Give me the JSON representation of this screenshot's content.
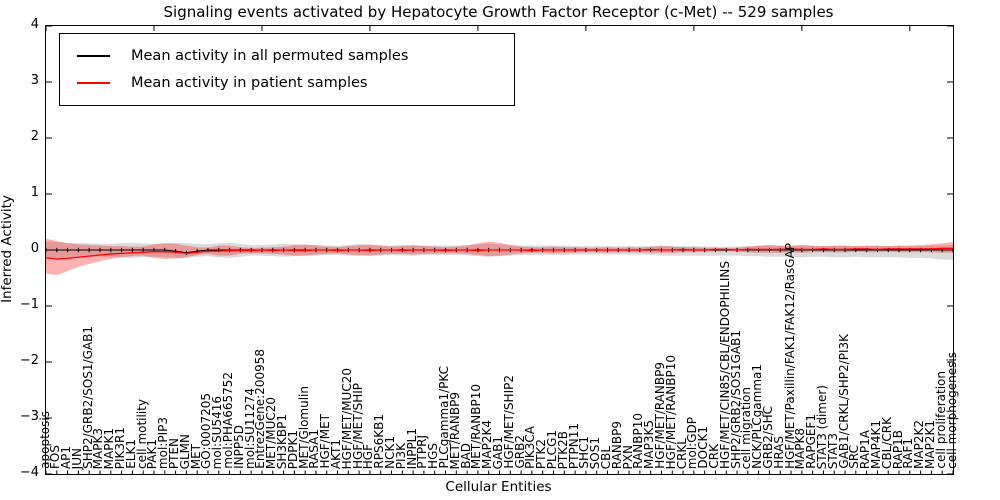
{
  "chart_data": {
    "type": "line",
    "title": "Signaling events activated by Hepatocyte Growth Factor Receptor (c-Met) -- 529 samples",
    "xlabel": "Cellular Entities",
    "ylabel": "Inferred Activity",
    "ylim": [
      -4,
      4
    ],
    "yticks": [
      4,
      3,
      2,
      1,
      0,
      -1,
      -2,
      -3,
      -4
    ],
    "grid": false,
    "legend_position": "upper left",
    "x_tick_rotation": 90,
    "categories": [
      "apoptosis",
      "FOS",
      "AP1",
      "JUN",
      "SHP2/GRB2/SOS1/GAB1",
      "MAPK3",
      "MAPK1",
      "PIK3R1",
      "ELK1",
      "cell motility",
      "PAK1",
      "mol:PIP3",
      "PTEN",
      "GLMN",
      "MET",
      "GO:0007205",
      "mol:SU5416",
      "mol:PHA665752",
      "INPP5D",
      "mol:SU11274",
      "EntrezGene:200958",
      "MET/MUC20",
      "SH3KBP1",
      "PDPK1",
      "MET/Glomulin",
      "RASA1",
      "HGF/MET",
      "AKT1",
      "HGF/MET/MUC20",
      "HGF/MET/SHIP",
      "HGF",
      "RPS6KB1",
      "NCK1",
      "PI3K",
      "INPPL1",
      "PTPRJ",
      "HGS",
      "PLCgamma1/PKC",
      "MET/RANBP9",
      "BAD",
      "MET/RANBP10",
      "MAP2K4",
      "GAB1",
      "HGF/MET/SHIP2",
      "GRB2",
      "PIK3CA",
      "PTK2",
      "PLCG1",
      "PTK2B",
      "PTPN11",
      "SHC1",
      "SOS1",
      "CBL",
      "RANBP9",
      "PXN",
      "RANBP10",
      "MAP3K5",
      "HGF/MET/RANBP9",
      "HGF/MET/RANBP10",
      "CRKL",
      "mol:GDP",
      "DOCK1",
      "CRK",
      "HGF/MET/CIN85/CBL/ENDOPHILINS",
      "SHP2/GRB2/SOS1GAB1",
      "cell migration",
      "NCK/PLCgamma1",
      "GRB2/SHC",
      "HRAS",
      "HGF/MET/Paxillin/FAK1/FAK12/RasGAP",
      "MAPK8",
      "RAPGEF1",
      "STAT3 (dimer)",
      "STAT3",
      "GAB1/CRKL/SHP2/PI3K",
      "SRC",
      "RAP1A",
      "MAP4K1",
      "CBL/CRK",
      "RAP1B",
      "RAF1",
      "MAP2K2",
      "MAP2K1",
      "cell proliferation",
      "cell morphogenesis"
    ],
    "series": [
      {
        "name": "Mean activity in all permuted samples",
        "color": "#000000",
        "band_fill": "rgba(0,0,0,0.14)",
        "values": [
          0,
          0,
          0,
          0,
          0,
          0,
          0,
          0,
          0,
          0,
          0,
          0,
          -0.02,
          -0.05,
          -0.02,
          0,
          0,
          0,
          0,
          0,
          0,
          0,
          0,
          0,
          0,
          0,
          0,
          0,
          0,
          0,
          0,
          0,
          0,
          0,
          0,
          0,
          0,
          0,
          0,
          0,
          0,
          0,
          0,
          0,
          0,
          0,
          0,
          0,
          0,
          0,
          0,
          0,
          0,
          0,
          0,
          0,
          0,
          0,
          0,
          0,
          0,
          0,
          0,
          0,
          0,
          0,
          0,
          0,
          0,
          0,
          0,
          0,
          0,
          0,
          0,
          0,
          0,
          0,
          0,
          0,
          0,
          0,
          0,
          0,
          0
        ],
        "band_upper": [
          0.15,
          0.14,
          0.13,
          0.12,
          0.12,
          0.11,
          0.11,
          0.12,
          0.13,
          0.12,
          0.11,
          0.12,
          0.13,
          0.12,
          0.11,
          0.1,
          0.12,
          0.13,
          0.11,
          0.09,
          0.09,
          0.1,
          0.11,
          0.1,
          0.09,
          0.09,
          0.08,
          0.08,
          0.09,
          0.1,
          0.09,
          0.08,
          0.08,
          0.09,
          0.09,
          0.08,
          0.08,
          0.08,
          0.08,
          0.09,
          0.1,
          0.11,
          0.1,
          0.09,
          0.08,
          0.08,
          0.08,
          0.08,
          0.08,
          0.07,
          0.07,
          0.07,
          0.07,
          0.07,
          0.07,
          0.07,
          0.07,
          0.08,
          0.07,
          0.07,
          0.07,
          0.06,
          0.06,
          0.06,
          0.06,
          0.07,
          0.07,
          0.08,
          0.07,
          0.07,
          0.08,
          0.07,
          0.07,
          0.07,
          0.07,
          0.07,
          0.07,
          0.07,
          0.07,
          0.07,
          0.07,
          0.07,
          0.08,
          0.08,
          0.09
        ],
        "band_lower": [
          -0.15,
          -0.14,
          -0.13,
          -0.13,
          -0.12,
          -0.12,
          -0.12,
          -0.13,
          -0.14,
          -0.13,
          -0.12,
          -0.13,
          -0.14,
          -0.14,
          -0.12,
          -0.11,
          -0.13,
          -0.14,
          -0.12,
          -0.1,
          -0.1,
          -0.11,
          -0.12,
          -0.11,
          -0.1,
          -0.1,
          -0.09,
          -0.09,
          -0.1,
          -0.11,
          -0.1,
          -0.09,
          -0.09,
          -0.1,
          -0.1,
          -0.09,
          -0.09,
          -0.09,
          -0.09,
          -0.1,
          -0.11,
          -0.12,
          -0.11,
          -0.1,
          -0.09,
          -0.09,
          -0.09,
          -0.09,
          -0.09,
          -0.08,
          -0.08,
          -0.08,
          -0.08,
          -0.08,
          -0.08,
          -0.08,
          -0.09,
          -0.1,
          -0.1,
          -0.1,
          -0.1,
          -0.1,
          -0.1,
          -0.1,
          -0.1,
          -0.11,
          -0.11,
          -0.12,
          -0.12,
          -0.12,
          -0.13,
          -0.12,
          -0.12,
          -0.13,
          -0.13,
          -0.12,
          -0.13,
          -0.13,
          -0.13,
          -0.13,
          -0.14,
          -0.14,
          -0.15,
          -0.17,
          -0.18
        ]
      },
      {
        "name": "Mean activity in patient samples",
        "color": "#ff0000",
        "band_fill": "rgba(255,0,0,0.30)",
        "values": [
          -0.14,
          -0.16,
          -0.15,
          -0.13,
          -0.11,
          -0.09,
          -0.07,
          -0.06,
          -0.05,
          -0.04,
          -0.03,
          -0.03,
          -0.04,
          -0.06,
          -0.04,
          -0.02,
          -0.02,
          -0.01,
          -0.01,
          -0.01,
          0,
          -0.01,
          0,
          -0.01,
          -0.01,
          0,
          0,
          -0.01,
          0,
          0,
          -0.01,
          0,
          0,
          -0.01,
          0,
          0,
          0,
          -0.01,
          0,
          0,
          -0.01,
          0,
          0,
          0,
          0,
          -0.01,
          0,
          0,
          0,
          0,
          0,
          0,
          0,
          0,
          0,
          0,
          0.01,
          0,
          0,
          0.01,
          0,
          0,
          0.01,
          0.01,
          0,
          0.01,
          0.01,
          0.01,
          0.01,
          0.02,
          0.01,
          0.01,
          0.02,
          0.01,
          0.01,
          0.02,
          0.02,
          0.01,
          0.02,
          0.02,
          0.02,
          0.02,
          0.02,
          0.03,
          0.03
        ],
        "band_upper": [
          0.2,
          0.16,
          0.12,
          0.1,
          0.09,
          0.08,
          0.07,
          0.07,
          0.06,
          0.06,
          0.1,
          0.12,
          0.11,
          0.08,
          0.05,
          0.04,
          0.08,
          0.08,
          0.05,
          0.04,
          0.04,
          0.05,
          0.06,
          0.09,
          0.1,
          0.08,
          0.06,
          0.05,
          0.07,
          0.09,
          0.1,
          0.08,
          0.06,
          0.07,
          0.08,
          0.07,
          0.06,
          0.05,
          0.06,
          0.08,
          0.12,
          0.15,
          0.13,
          0.09,
          0.06,
          0.05,
          0.05,
          0.06,
          0.05,
          0.05,
          0.04,
          0.04,
          0.05,
          0.04,
          0.05,
          0.04,
          0.06,
          0.07,
          0.06,
          0.05,
          0.05,
          0.04,
          0.04,
          0.03,
          0.04,
          0.06,
          0.08,
          0.09,
          0.08,
          0.08,
          0.09,
          0.08,
          0.07,
          0.08,
          0.08,
          0.07,
          0.08,
          0.08,
          0.07,
          0.08,
          0.08,
          0.09,
          0.1,
          0.12,
          0.14
        ],
        "band_lower": [
          -0.42,
          -0.45,
          -0.38,
          -0.3,
          -0.25,
          -0.2,
          -0.16,
          -0.13,
          -0.11,
          -0.1,
          -0.14,
          -0.16,
          -0.15,
          -0.13,
          -0.09,
          -0.07,
          -0.1,
          -0.1,
          -0.07,
          -0.06,
          -0.06,
          -0.07,
          -0.08,
          -0.1,
          -0.1,
          -0.08,
          -0.07,
          -0.06,
          -0.08,
          -0.09,
          -0.1,
          -0.08,
          -0.07,
          -0.07,
          -0.08,
          -0.07,
          -0.06,
          -0.06,
          -0.06,
          -0.07,
          -0.09,
          -0.11,
          -0.1,
          -0.08,
          -0.06,
          -0.05,
          -0.05,
          -0.06,
          -0.05,
          -0.05,
          -0.04,
          -0.04,
          -0.05,
          -0.04,
          -0.04,
          -0.04,
          -0.05,
          -0.05,
          -0.05,
          -0.04,
          -0.04,
          -0.03,
          -0.03,
          -0.02,
          -0.03,
          -0.04,
          -0.05,
          -0.05,
          -0.05,
          -0.04,
          -0.05,
          -0.04,
          -0.04,
          -0.04,
          -0.04,
          -0.03,
          -0.04,
          -0.04,
          -0.03,
          -0.04,
          -0.04,
          -0.04,
          -0.04,
          -0.05,
          -0.05
        ]
      }
    ]
  }
}
